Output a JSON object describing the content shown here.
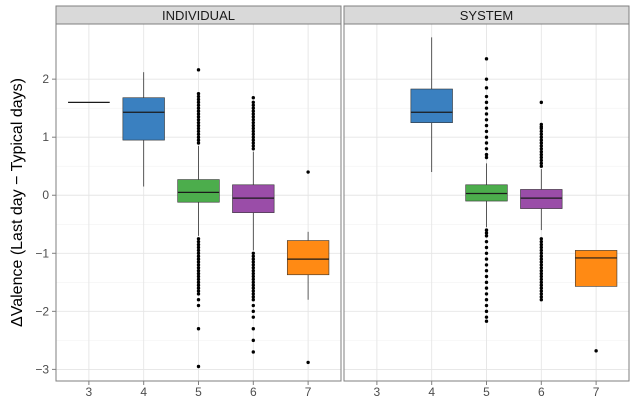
{
  "chart_data": {
    "type": "boxplot",
    "ylabel": "ΔValence (Last day − Typical days)",
    "ylim": [
      -3.2,
      2.95
    ],
    "yticks": [
      -3,
      -2,
      -1,
      0,
      1,
      2
    ],
    "xticks": [
      3,
      4,
      5,
      6,
      7
    ],
    "grid": true,
    "colors": {
      "3": "#2e6fad",
      "4": "#3a80c0",
      "5": "#4cad4c",
      "6": "#9a4da8",
      "7": "#ff8a14"
    },
    "panels": [
      {
        "title": "INDIVIDUAL",
        "boxes": [
          {
            "x": 3,
            "whislo": 1.6,
            "q1": 1.6,
            "med": 1.6,
            "q3": 1.6,
            "whishi": 1.6,
            "outliers": []
          },
          {
            "x": 4,
            "whislo": 0.15,
            "q1": 0.95,
            "med": 1.43,
            "q3": 1.68,
            "whishi": 2.12,
            "outliers": []
          },
          {
            "x": 5,
            "whislo": -0.7,
            "q1": -0.12,
            "med": 0.05,
            "q3": 0.27,
            "whishi": 0.85,
            "outliers": [
              2.16,
              1.75,
              1.7,
              1.65,
              1.6,
              1.55,
              1.5,
              1.45,
              1.4,
              1.35,
              1.3,
              1.25,
              1.2,
              1.15,
              1.1,
              1.05,
              1.0,
              0.95,
              0.9,
              -0.75,
              -0.8,
              -0.85,
              -0.9,
              -0.95,
              -1.0,
              -1.05,
              -1.1,
              -1.15,
              -1.2,
              -1.25,
              -1.3,
              -1.35,
              -1.4,
              -1.45,
              -1.5,
              -1.55,
              -1.6,
              -1.65,
              -1.7,
              -1.8,
              -1.9,
              -2.3,
              -2.95
            ]
          },
          {
            "x": 6,
            "whislo": -0.95,
            "q1": -0.3,
            "med": -0.05,
            "q3": 0.18,
            "whishi": 0.75,
            "outliers": [
              1.68,
              1.6,
              1.55,
              1.5,
              1.45,
              1.4,
              1.35,
              1.3,
              1.25,
              1.2,
              1.15,
              1.1,
              1.05,
              1.0,
              0.95,
              0.9,
              0.85,
              0.8,
              -1.0,
              -1.05,
              -1.1,
              -1.15,
              -1.2,
              -1.25,
              -1.3,
              -1.35,
              -1.4,
              -1.45,
              -1.5,
              -1.55,
              -1.6,
              -1.65,
              -1.7,
              -1.75,
              -1.8,
              -1.9,
              -2.0,
              -2.1,
              -2.3,
              -2.5,
              -2.7
            ]
          },
          {
            "x": 7,
            "whislo": -1.8,
            "q1": -1.37,
            "med": -1.1,
            "q3": -0.78,
            "whishi": -0.63,
            "outliers": [
              0.4,
              -2.88
            ]
          }
        ]
      },
      {
        "title": "SYSTEM",
        "boxes": [
          {
            "x": 4,
            "whislo": 0.4,
            "q1": 1.25,
            "med": 1.43,
            "q3": 1.83,
            "whishi": 2.72,
            "outliers": []
          },
          {
            "x": 5,
            "whislo": -0.55,
            "q1": -0.1,
            "med": 0.03,
            "q3": 0.18,
            "whishi": 0.55,
            "outliers": [
              2.35,
              2.0,
              1.85,
              1.7,
              1.6,
              1.5,
              1.4,
              1.3,
              1.2,
              1.1,
              1.0,
              0.9,
              0.8,
              0.7,
              0.65,
              -0.6,
              -0.65,
              -0.7,
              -0.8,
              -0.9,
              -1.0,
              -1.1,
              -1.2,
              -1.3,
              -1.4,
              -1.5,
              -1.6,
              -1.7,
              -1.8,
              -1.9,
              -2.0,
              -2.1,
              -2.17
            ]
          },
          {
            "x": 6,
            "whislo": -0.6,
            "q1": -0.23,
            "med": -0.05,
            "q3": 0.1,
            "whishi": 0.45,
            "outliers": [
              1.6,
              1.22,
              1.18,
              1.15,
              1.1,
              1.05,
              1.0,
              0.95,
              0.9,
              0.85,
              0.8,
              0.75,
              0.7,
              0.65,
              0.6,
              0.55,
              0.5,
              -0.75,
              -0.8,
              -0.85,
              -0.9,
              -0.95,
              -1.0,
              -1.05,
              -1.1,
              -1.15,
              -1.2,
              -1.25,
              -1.3,
              -1.35,
              -1.4,
              -1.45,
              -1.5,
              -1.55,
              -1.6,
              -1.65,
              -1.7,
              -1.75,
              -1.8
            ]
          },
          {
            "x": 7,
            "whislo": -1.57,
            "q1": -1.57,
            "med": -1.08,
            "q3": -0.95,
            "whishi": -0.95,
            "outliers": [
              -2.68
            ]
          }
        ]
      }
    ]
  }
}
